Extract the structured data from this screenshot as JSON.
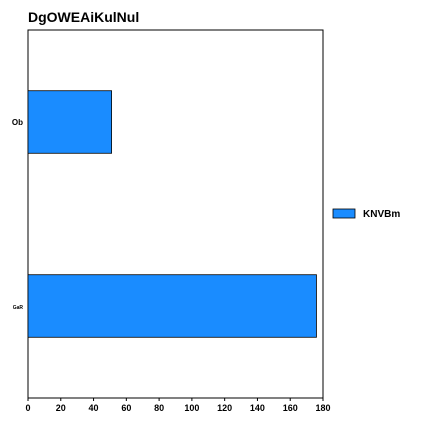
{
  "chart_data": {
    "type": "bar",
    "orientation": "horizontal",
    "title": "DgOWEAiKulNul",
    "categories": [
      "Ob",
      "GaR"
    ],
    "series": [
      {
        "name": "KNVBm",
        "values": [
          51,
          176
        ],
        "color": "#1a8cff"
      }
    ],
    "xlim": [
      0,
      180
    ],
    "x_ticks": [
      "0",
      "20",
      "40",
      "60",
      "80",
      "100",
      "120",
      "140",
      "160",
      "180"
    ],
    "xlabel": "",
    "ylabel": "",
    "grid": false,
    "legend_position": "right"
  }
}
